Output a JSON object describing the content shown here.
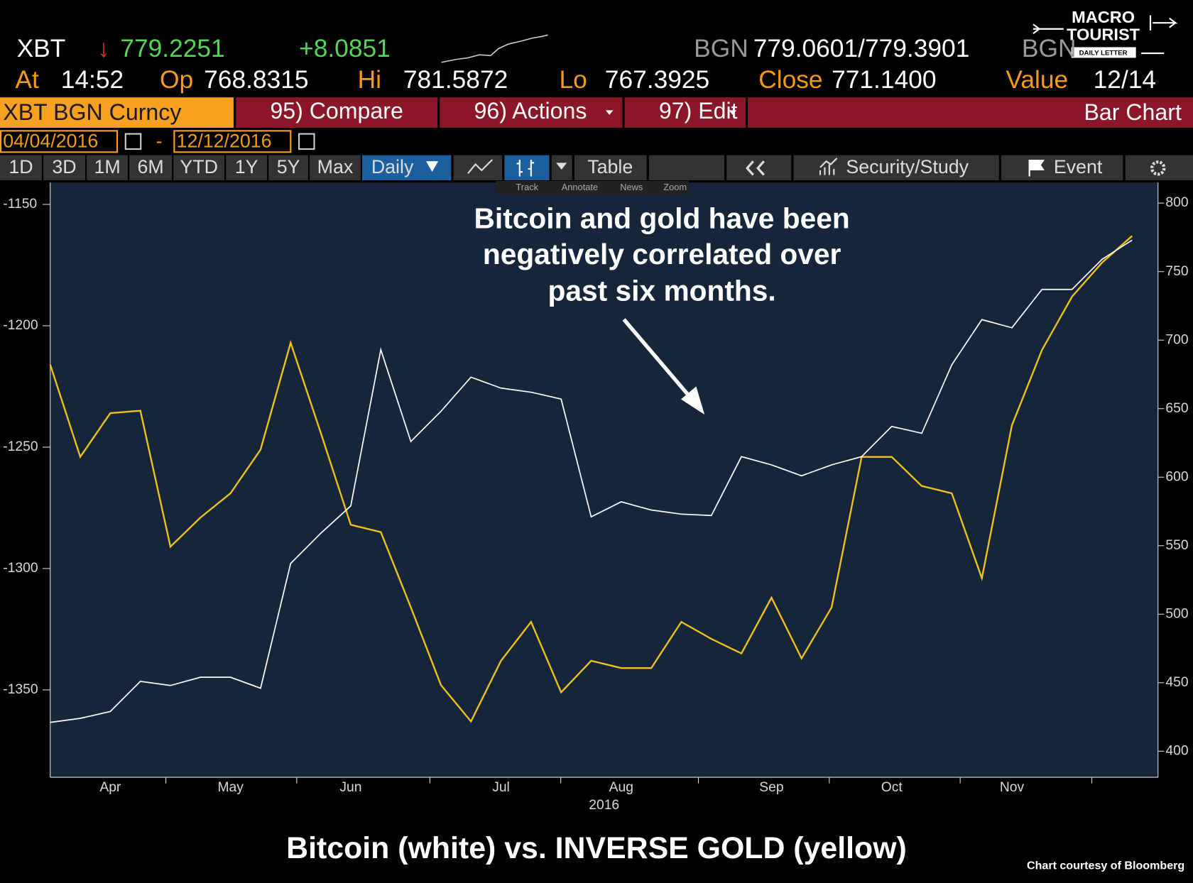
{
  "logo": [
    "MACRO",
    "TOURIST",
    "DAILY LETTER"
  ],
  "quote": {
    "ticker": "XBT",
    "direction": "↓",
    "last": "779.2251",
    "change": "+8.0851",
    "source": "BGN",
    "bid_ask": "779.0601/779.3901",
    "source2": "BGN"
  },
  "stats": [
    {
      "label": "At",
      "value": "14:52"
    },
    {
      "label": "Op",
      "value": "768.8315"
    },
    {
      "label": "Hi",
      "value": "781.5872"
    },
    {
      "label": "Lo",
      "value": "767.3925"
    },
    {
      "label": "Close",
      "value": "771.1400"
    },
    {
      "label": "Value",
      "value": "12/14"
    }
  ],
  "toolbar": {
    "security": "XBT BGN Curncy",
    "menus": [
      "95) Compare",
      "96) Actions",
      "97) Edit"
    ],
    "view": "Bar Chart"
  },
  "dates": {
    "start": "04/04/2016",
    "separator": "-",
    "end": "12/12/2016"
  },
  "ranges": [
    "1D",
    "3D",
    "1M",
    "6M",
    "YTD",
    "1Y",
    "5Y",
    "Max"
  ],
  "frequency": "Daily",
  "buttons": {
    "table": "Table",
    "study": "Security/Study",
    "event": "Event"
  },
  "tools": [
    "Track",
    "Annotate",
    "News",
    "Zoom"
  ],
  "chart_data": {
    "type": "line",
    "annotation": [
      "Bitcoin and gold have been",
      "negatively correlated over",
      "past six months."
    ],
    "caption": "Bitcoin (white) vs. INVERSE GOLD (yellow)",
    "credit": "Chart courtesy of Bloomberg",
    "xlabel": "2016",
    "categories": [
      null,
      null,
      "Apr",
      null,
      null,
      null,
      "May",
      null,
      null,
      null,
      "Jun",
      null,
      null,
      null,
      null,
      "Jul",
      null,
      null,
      null,
      "Aug",
      null,
      null,
      null,
      null,
      "Sep",
      null,
      null,
      null,
      "Oct",
      null,
      null,
      null,
      "Nov",
      null,
      null,
      null,
      null
    ],
    "series": [
      {
        "color": "#f2c318",
        "axis": "y",
        "values": [
          -1216,
          -1254,
          -1236,
          -1235,
          -1291,
          -1279,
          -1269,
          -1251,
          -1207,
          -1244,
          -1282,
          -1285,
          -1316,
          -1348,
          -1363,
          -1338,
          -1322,
          -1351,
          -1338,
          -1341,
          -1341,
          -1322,
          -1329,
          -1335,
          -1312,
          -1337,
          -1316,
          -1254,
          -1254,
          -1266,
          -1269,
          -1304,
          -1241,
          -1210,
          -1188,
          -1174,
          -1163
        ]
      },
      {
        "color": "#ffffff",
        "axis": "y2",
        "values": [
          421,
          424,
          429,
          451,
          448,
          454,
          454,
          446,
          537,
          559,
          579,
          693,
          626,
          648,
          673,
          665,
          662,
          657,
          571,
          582,
          576,
          573,
          572,
          615,
          609,
          601,
          609,
          615,
          637,
          632,
          682,
          715,
          709,
          737,
          737,
          759,
          773
        ]
      }
    ],
    "ylim": [
      -1386,
      -1141
    ],
    "yticks": [
      -1350,
      -1300,
      -1250,
      -1200,
      -1150
    ],
    "y2lim": [
      381,
      815
    ],
    "y2ticks": [
      400,
      450,
      500,
      550,
      600,
      650,
      700,
      750,
      800
    ],
    "grid": false
  }
}
